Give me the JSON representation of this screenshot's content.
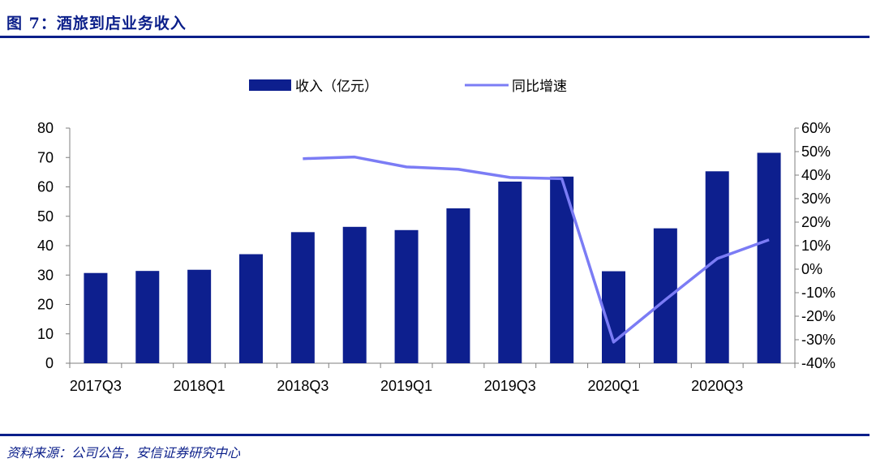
{
  "figure": {
    "title": "图 7：酒旅到店业务收入",
    "source": "资料来源：公司公告，安信证券研究中心"
  },
  "colors": {
    "bar": "#0d1f8e",
    "line": "#7b7cf5",
    "rule": "#0b1f8a"
  },
  "chart_data": {
    "type": "bar",
    "categories": [
      "2017Q3",
      "2017Q4",
      "2018Q1",
      "2018Q2",
      "2018Q3",
      "2018Q4",
      "2019Q1",
      "2019Q2",
      "2019Q3",
      "2019Q4",
      "2020Q1",
      "2020Q2",
      "2020Q3",
      "2020Q4"
    ],
    "x_tick_labels": [
      "2017Q3",
      "",
      "2018Q1",
      "",
      "2018Q3",
      "",
      "2019Q1",
      "",
      "2019Q3",
      "",
      "2020Q1",
      "",
      "2020Q3",
      ""
    ],
    "series": [
      {
        "name": "收入（亿元）",
        "type": "bar",
        "axis": "left",
        "values": [
          30.7,
          31.4,
          31.8,
          37.1,
          44.6,
          46.4,
          45.3,
          52.7,
          61.8,
          63.5,
          31.3,
          45.9,
          65.3,
          71.6
        ]
      },
      {
        "name": "同比增速",
        "type": "line",
        "axis": "right",
        "values": [
          null,
          null,
          null,
          null,
          47.0,
          47.7,
          43.5,
          42.5,
          39.0,
          38.5,
          -31.0,
          -13.0,
          4.5,
          12.5
        ]
      }
    ],
    "y_left": {
      "min": 0,
      "max": 80,
      "ticks": [
        "0",
        "10",
        "20",
        "30",
        "40",
        "50",
        "60",
        "70",
        "80"
      ]
    },
    "y_right": {
      "min": -40,
      "max": 60,
      "ticks": [
        "-40%",
        "-30%",
        "-20%",
        "-10%",
        "0%",
        "10%",
        "20%",
        "30%",
        "40%",
        "50%",
        "60%"
      ]
    },
    "legend_placement": "top-center",
    "grid": false
  }
}
